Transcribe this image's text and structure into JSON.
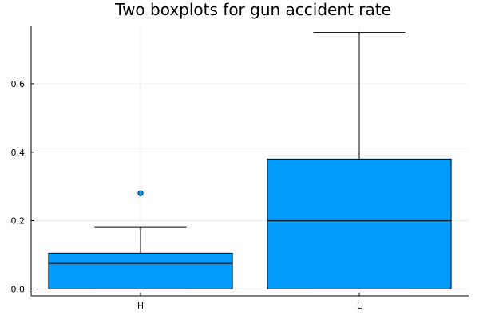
{
  "chart_data": {
    "type": "boxplot",
    "title": "Two boxplots for gun accident rate",
    "xlabel": "",
    "ylabel": "",
    "categories": [
      "H",
      "L"
    ],
    "boxes": [
      {
        "category": "H",
        "lower_whisker": 0.0,
        "q1": 0.0,
        "median": 0.075,
        "q3": 0.105,
        "upper_whisker": 0.18,
        "outliers": [
          0.28
        ]
      },
      {
        "category": "L",
        "lower_whisker": 0.0,
        "q1": 0.0,
        "median": 0.2,
        "q3": 0.38,
        "upper_whisker": 0.75,
        "outliers": []
      }
    ],
    "ylim": [
      -0.02,
      0.77
    ],
    "yticks": [
      0.0,
      0.2,
      0.4,
      0.6
    ],
    "ytick_labels": [
      "0.0",
      "0.2",
      "0.4",
      "0.6"
    ],
    "grid": true,
    "legend": "none",
    "box_color": "#009AFA"
  }
}
